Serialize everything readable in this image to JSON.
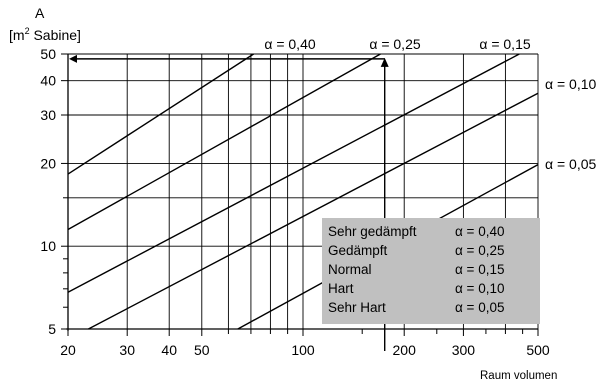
{
  "chart_data": {
    "type": "line",
    "ylabel_symbol": "A",
    "ylabel_unit_prefix": "[m",
    "ylabel_unit_exp": "2",
    "ylabel_unit_suffix": " Sabine]",
    "xlabel": "Raum volumen",
    "x_scale": "log",
    "y_scale": "log",
    "xlim": [
      20,
      500
    ],
    "ylim": [
      5,
      50
    ],
    "x_ticks": [
      20,
      30,
      40,
      50,
      100,
      200,
      300,
      500
    ],
    "x_tick_labels": [
      "20",
      "30",
      "40",
      "50",
      "100",
      "200",
      "300",
      "500"
    ],
    "x_minor_gridlines": [
      60,
      70,
      80,
      90,
      400
    ],
    "x_minor_ticks": [
      150,
      250,
      350,
      450
    ],
    "y_ticks": [
      5,
      10,
      20,
      30,
      40,
      50
    ],
    "y_tick_labels": [
      "5",
      "10",
      "20",
      "30",
      "40",
      "50"
    ],
    "y_minor_gridlines": [
      15
    ],
    "y_minor_ticks": [
      6,
      7,
      8,
      9
    ],
    "grid": true,
    "series": [
      {
        "name": "α = 0,40",
        "alpha": 0.4,
        "x": [
          20,
          71.3
        ],
        "y": [
          18.3,
          50
        ]
      },
      {
        "name": "α = 0,25",
        "alpha": 0.25,
        "x": [
          20,
          170
        ],
        "y": [
          11.5,
          50
        ]
      },
      {
        "name": "α = 0,15",
        "alpha": 0.15,
        "x": [
          20,
          440
        ],
        "y": [
          6.8,
          50
        ]
      },
      {
        "name": "α = 0,10",
        "alpha": 0.1,
        "x": [
          23,
          500
        ],
        "y": [
          5,
          36
        ]
      },
      {
        "name": "α = 0,05",
        "alpha": 0.05,
        "x": [
          64,
          500
        ],
        "y": [
          5,
          19.8
        ]
      }
    ],
    "example_reading": {
      "x": 175,
      "y": 48
    },
    "legend": {
      "placement": "bottom-right",
      "entries": [
        {
          "label": "Sehr gedämpft",
          "value": "α = 0,40"
        },
        {
          "label": "Gedämpft",
          "value": "α = 0,25"
        },
        {
          "label": "Normal",
          "value": "α = 0,15"
        },
        {
          "label": "Hart",
          "value": "α = 0,10"
        },
        {
          "label": "Sehr Hart",
          "value": "α = 0,05"
        }
      ],
      "background": "#c0c0c0"
    }
  }
}
